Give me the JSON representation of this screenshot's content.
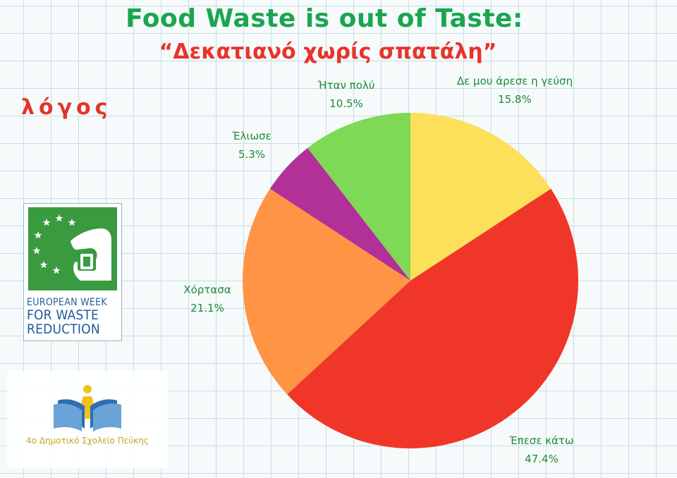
{
  "title": "Food Waste is out of Taste:",
  "subtitle": "“Δεκατιανό χωρίς σπατάλη”",
  "heading": "λόγος",
  "logos": {
    "ewwr": {
      "line1": "EUROPEAN WEEK",
      "line2": "FOR WASTE",
      "line3": "REDUCTION"
    },
    "school": {
      "name": "4ο Δημοτικό Σχολείο Πεύκης"
    }
  },
  "chart_data": {
    "type": "pie",
    "title": "",
    "start_angle_deg": 0,
    "direction": "clockwise",
    "slices": [
      {
        "label": "Δε μου άρεσε η γεύση",
        "value": 15.8,
        "value_label": "15.8%",
        "color": "#fde05a"
      },
      {
        "label": "Έπεσε κάτω",
        "value": 47.4,
        "value_label": "47.4%",
        "color": "#f03629"
      },
      {
        "label": "Χόρτασα",
        "value": 21.1,
        "value_label": "21.1%",
        "color": "#ff9445"
      },
      {
        "label": "Έλιωσε",
        "value": 5.3,
        "value_label": "5.3%",
        "color": "#b23198"
      },
      {
        "label": "Ήταν πολύ",
        "value": 10.5,
        "value_label": "10.5%",
        "color": "#7ed957"
      }
    ]
  }
}
